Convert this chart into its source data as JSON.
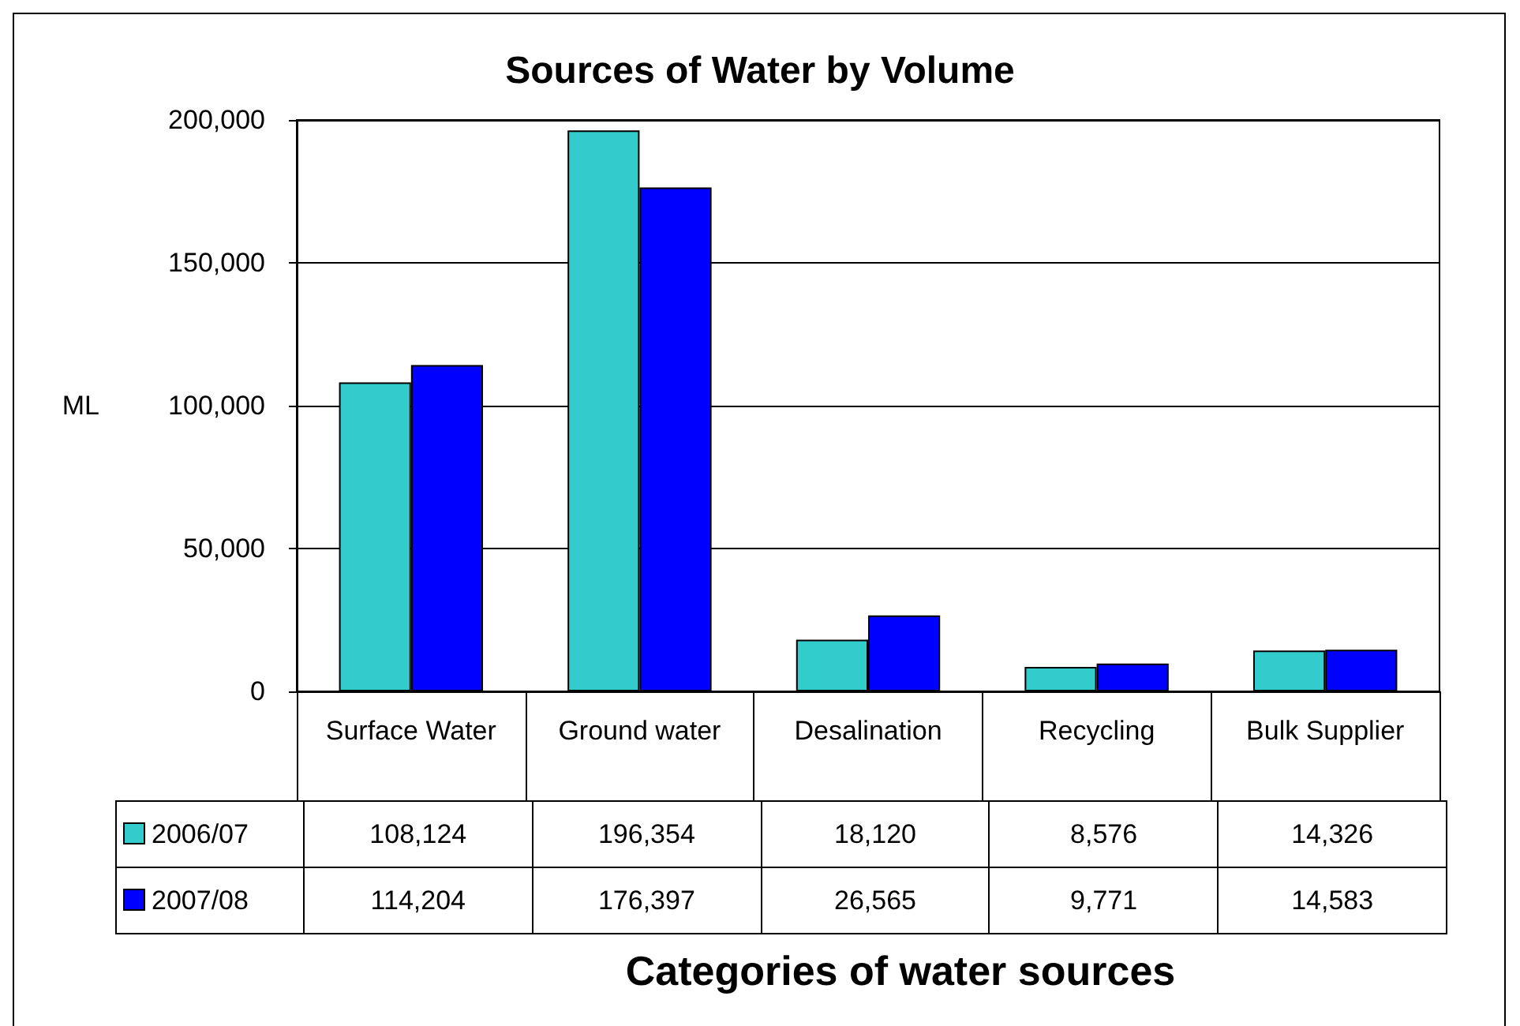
{
  "chart_data": {
    "type": "bar",
    "title": "Sources of Water by Volume",
    "xlabel": "Categories of water sources",
    "ylabel": "ML",
    "categories": [
      "Surface Water",
      "Ground water",
      "Desalination",
      "Recycling",
      "Bulk Supplier"
    ],
    "series": [
      {
        "name": "2006/07",
        "color": "#33cccc",
        "values": [
          108124,
          196354,
          18120,
          8576,
          14326
        ],
        "value_labels": [
          "108,124",
          "196,354",
          "18,120",
          "8,576",
          "14,326"
        ]
      },
      {
        "name": "2007/08",
        "color": "#0000ff",
        "values": [
          114204,
          176397,
          26565,
          9771,
          14583
        ],
        "value_labels": [
          "114,204",
          "176,397",
          "26,565",
          "9,771",
          "14,583"
        ]
      }
    ],
    "ylim": [
      0,
      200000
    ],
    "yticks": [
      0,
      {
        "value": 50000,
        "label": "50,000"
      },
      {
        "value": 100000,
        "label": "100,000"
      },
      {
        "value": 150000,
        "label": "150,000"
      },
      {
        "value": 200000,
        "label": "200,000"
      }
    ],
    "grid": "y",
    "legend": "bottom left"
  }
}
